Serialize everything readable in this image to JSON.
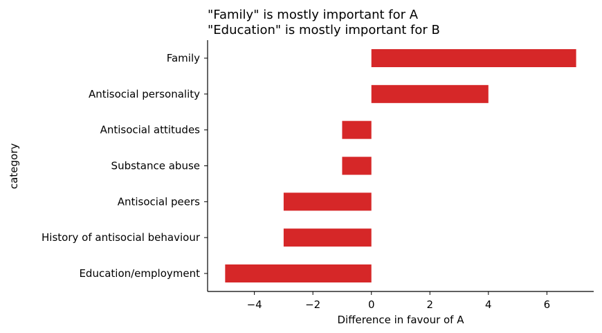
{
  "chart_data": {
    "type": "bar",
    "orientation": "horizontal",
    "title_lines": [
      "\"Family\" is mostly important for A",
      "\"Education\" is mostly important for B"
    ],
    "xlabel": "Difference in favour of A",
    "ylabel": "category",
    "xlim": [
      -5.6,
      7.6
    ],
    "xticks": [
      -4,
      -2,
      0,
      2,
      4,
      6
    ],
    "xtick_labels": [
      "−4",
      "−2",
      "0",
      "2",
      "4",
      "6"
    ],
    "categories": [
      "Family",
      "Antisocial personality",
      "Antisocial attitudes",
      "Substance abuse",
      "Antisocial peers",
      "History of antisocial behaviour",
      "Education/employment"
    ],
    "values": [
      7,
      4,
      -1,
      -1,
      -3,
      -3,
      -5
    ],
    "bar_color": "#d62728",
    "grid": false,
    "legend": false
  }
}
